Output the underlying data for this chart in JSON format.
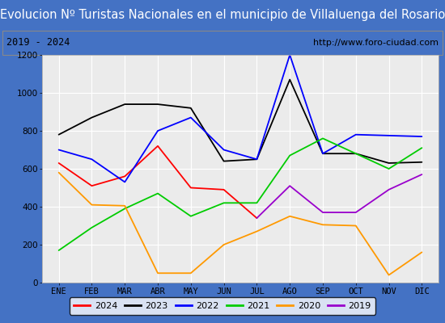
{
  "title": "Evolucion Nº Turistas Nacionales en el municipio de Villaluenga del Rosario",
  "subtitle_left": "2019 - 2024",
  "subtitle_right": "http://www.foro-ciudad.com",
  "months": [
    "ENE",
    "FEB",
    "MAR",
    "ABR",
    "MAY",
    "JUN",
    "JUL",
    "AGO",
    "SEP",
    "OCT",
    "NOV",
    "DIC"
  ],
  "series": {
    "2024": {
      "color": "#ff0000",
      "data": [
        630,
        510,
        560,
        720,
        500,
        490,
        340,
        null,
        null,
        null,
        null,
        null
      ]
    },
    "2023": {
      "color": "#000000",
      "data": [
        780,
        870,
        940,
        940,
        920,
        640,
        650,
        1070,
        680,
        680,
        630,
        635
      ]
    },
    "2022": {
      "color": "#0000ff",
      "data": [
        700,
        650,
        530,
        800,
        870,
        700,
        650,
        1200,
        680,
        780,
        775,
        770
      ]
    },
    "2021": {
      "color": "#00cc00",
      "data": [
        170,
        290,
        390,
        470,
        350,
        420,
        420,
        670,
        760,
        680,
        600,
        710
      ]
    },
    "2020": {
      "color": "#ff9900",
      "data": [
        580,
        410,
        405,
        50,
        50,
        200,
        270,
        350,
        305,
        300,
        40,
        160
      ]
    },
    "2019": {
      "color": "#9900cc",
      "data": [
        null,
        null,
        null,
        null,
        null,
        null,
        340,
        510,
        370,
        370,
        490,
        570
      ]
    }
  },
  "ylim": [
    0,
    1200
  ],
  "yticks": [
    0,
    200,
    400,
    600,
    800,
    1000,
    1200
  ],
  "title_bg_color": "#4472c4",
  "title_text_color": "#ffffff",
  "plot_bg_color": "#ebebeb",
  "grid_color": "#ffffff",
  "outer_bg_color": "#4472c4",
  "inner_bg_color": "#ffffff",
  "title_fontsize": 10.5,
  "axis_fontsize": 7.5,
  "legend_fontsize": 8,
  "legend_years": [
    "2024",
    "2023",
    "2022",
    "2021",
    "2020",
    "2019"
  ]
}
